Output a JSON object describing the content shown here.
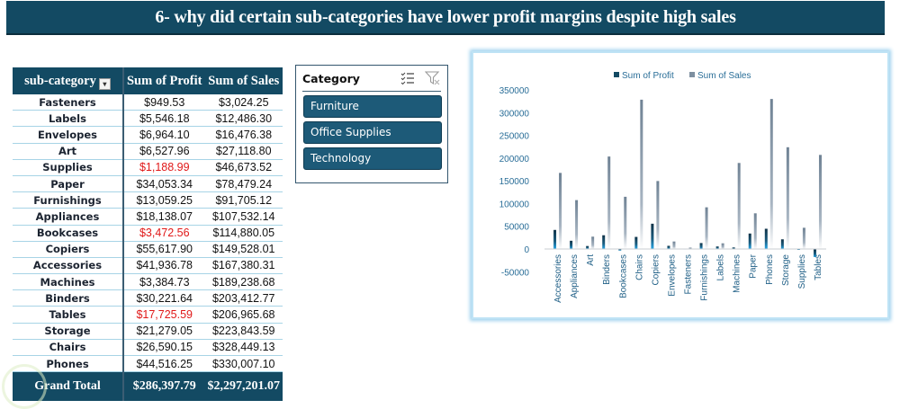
{
  "header": {
    "title": "6- why did certain sub-categories have lower profit margins despite high sales"
  },
  "pivot": {
    "columns": [
      "sub-category",
      "Sum of Profit",
      "Sum of Sales"
    ],
    "sort_icon": "sort-filter-icon",
    "rows": [
      {
        "name": "Fasteners",
        "profit": "$949.53",
        "sales": "$3,024.25",
        "profit_negative": false
      },
      {
        "name": "Labels",
        "profit": "$5,546.18",
        "sales": "$12,486.30",
        "profit_negative": false
      },
      {
        "name": "Envelopes",
        "profit": "$6,964.10",
        "sales": "$16,476.38",
        "profit_negative": false
      },
      {
        "name": "Art",
        "profit": "$6,527.96",
        "sales": "$27,118.80",
        "profit_negative": false
      },
      {
        "name": "Supplies",
        "profit": "$1,188.99",
        "sales": "$46,673.52",
        "profit_negative": true
      },
      {
        "name": "Paper",
        "profit": "$34,053.34",
        "sales": "$78,479.24",
        "profit_negative": false
      },
      {
        "name": "Furnishings",
        "profit": "$13,059.25",
        "sales": "$91,705.12",
        "profit_negative": false
      },
      {
        "name": "Appliances",
        "profit": "$18,138.07",
        "sales": "$107,532.14",
        "profit_negative": false
      },
      {
        "name": "Bookcases",
        "profit": "$3,472.56",
        "sales": "$114,880.05",
        "profit_negative": true
      },
      {
        "name": "Copiers",
        "profit": "$55,617.90",
        "sales": "$149,528.01",
        "profit_negative": false
      },
      {
        "name": "Accessories",
        "profit": "$41,936.78",
        "sales": "$167,380.31",
        "profit_negative": false
      },
      {
        "name": "Machines",
        "profit": "$3,384.73",
        "sales": "$189,238.68",
        "profit_negative": false
      },
      {
        "name": "Binders",
        "profit": "$30,221.64",
        "sales": "$203,412.77",
        "profit_negative": false
      },
      {
        "name": "Tables",
        "profit": "$17,725.59",
        "sales": "$206,965.68",
        "profit_negative": true
      },
      {
        "name": "Storage",
        "profit": "$21,279.05",
        "sales": "$223,843.59",
        "profit_negative": false
      },
      {
        "name": "Chairs",
        "profit": "$26,590.15",
        "sales": "$328,449.13",
        "profit_negative": false
      },
      {
        "name": "Phones",
        "profit": "$44,516.25",
        "sales": "$330,007.10",
        "profit_negative": false
      }
    ],
    "total": {
      "label": "Grand Total",
      "profit": "$286,397.79",
      "sales": "$2,297,201.07"
    }
  },
  "slicer": {
    "title": "Category",
    "multiselect_icon": "multi-select-icon",
    "clear_filter_icon": "clear-filter-icon",
    "items": [
      "Furniture",
      "Office Supplies",
      "Technology"
    ]
  },
  "chart_data": {
    "type": "bar",
    "title": "",
    "xlabel": "",
    "ylabel": "",
    "legend": "top",
    "grid": false,
    "ylim": [
      -50000,
      350000
    ],
    "yticks": [
      -50000,
      0,
      50000,
      100000,
      150000,
      200000,
      250000,
      300000,
      350000
    ],
    "categories": [
      "Accessories",
      "Appliances",
      "Art",
      "Binders",
      "Bookcases",
      "Chairs",
      "Copiers",
      "Envelopes",
      "Fasteners",
      "Furnishings",
      "Labels",
      "Machines",
      "Paper",
      "Phones",
      "Storage",
      "Supplies",
      "Tables"
    ],
    "series": [
      {
        "name": "Sum of Profit",
        "color": "#134a63",
        "values": [
          41936.78,
          18138.07,
          6527.96,
          30221.64,
          -3472.56,
          26590.15,
          55617.9,
          6964.1,
          949.53,
          13059.25,
          5546.18,
          3384.73,
          34053.34,
          44516.25,
          21279.05,
          -1188.99,
          -17725.59
        ]
      },
      {
        "name": "Sum of Sales",
        "color": "#7d8fa0",
        "values": [
          167380.31,
          107532.14,
          27118.8,
          203412.77,
          114880.05,
          328449.13,
          149528.01,
          16476.38,
          3024.25,
          91705.12,
          12486.3,
          189238.68,
          78479.24,
          330007.1,
          223843.59,
          46673.52,
          206965.68
        ]
      }
    ]
  }
}
